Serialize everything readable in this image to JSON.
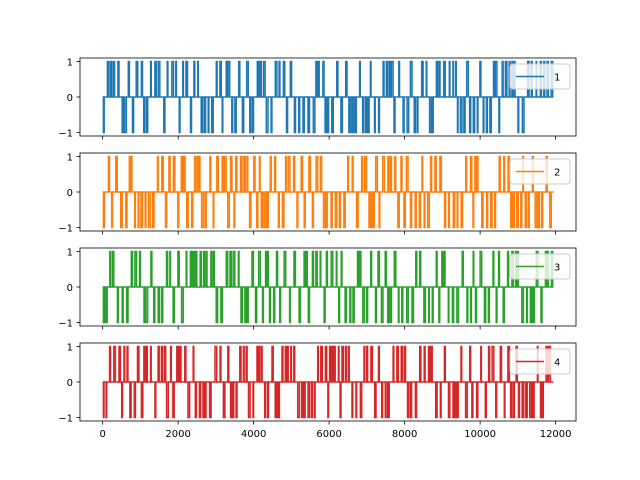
{
  "figure": {
    "background": "#ffffff"
  },
  "chart_data": [
    {
      "type": "line",
      "series": [
        {
          "name": "1",
          "color": "#1f77b4",
          "x_range": [
            0,
            11940
          ],
          "values": [
            -1,
            0,
            1
          ]
        }
      ],
      "xlim": [
        -600,
        12540
      ],
      "ylim": [
        -1.1,
        1.1
      ],
      "yticks": [
        1,
        0,
        -1
      ],
      "ytick_labels": [
        "1",
        "0",
        "−1"
      ],
      "xticks": [
        0,
        2000,
        4000,
        6000,
        8000,
        10000,
        12000
      ],
      "xtick_labels": [],
      "grid": false,
      "legend": "upper right"
    },
    {
      "type": "line",
      "series": [
        {
          "name": "2",
          "color": "#ff7f0e",
          "x_range": [
            0,
            11940
          ],
          "values": [
            -1,
            0,
            1
          ]
        }
      ],
      "xlim": [
        -600,
        12540
      ],
      "ylim": [
        -1.1,
        1.1
      ],
      "yticks": [
        1,
        0,
        -1
      ],
      "ytick_labels": [
        "1",
        "0",
        "−1"
      ],
      "xticks": [
        0,
        2000,
        4000,
        6000,
        8000,
        10000,
        12000
      ],
      "xtick_labels": [],
      "grid": false,
      "legend": "upper right"
    },
    {
      "type": "line",
      "series": [
        {
          "name": "3",
          "color": "#2ca02c",
          "x_range": [
            0,
            11940
          ],
          "values": [
            -1,
            0,
            1
          ]
        }
      ],
      "xlim": [
        -600,
        12540
      ],
      "ylim": [
        -1.1,
        1.1
      ],
      "yticks": [
        1,
        0,
        -1
      ],
      "ytick_labels": [
        "1",
        "0",
        "−1"
      ],
      "xticks": [
        0,
        2000,
        4000,
        6000,
        8000,
        10000,
        12000
      ],
      "xtick_labels": [],
      "grid": false,
      "legend": "upper right"
    },
    {
      "type": "line",
      "series": [
        {
          "name": "4",
          "color": "#d62728",
          "x_range": [
            0,
            11940
          ],
          "values": [
            -1,
            0,
            1
          ]
        }
      ],
      "xlim": [
        -600,
        12540
      ],
      "ylim": [
        -1.1,
        1.1
      ],
      "yticks": [
        1,
        0,
        -1
      ],
      "ytick_labels": [
        "1",
        "0",
        "−1"
      ],
      "xticks": [
        0,
        2000,
        4000,
        6000,
        8000,
        10000,
        12000
      ],
      "xtick_labels": [
        "0",
        "2000",
        "4000",
        "6000",
        "8000",
        "10000",
        "12000"
      ],
      "grid": false,
      "legend": "upper right"
    }
  ]
}
